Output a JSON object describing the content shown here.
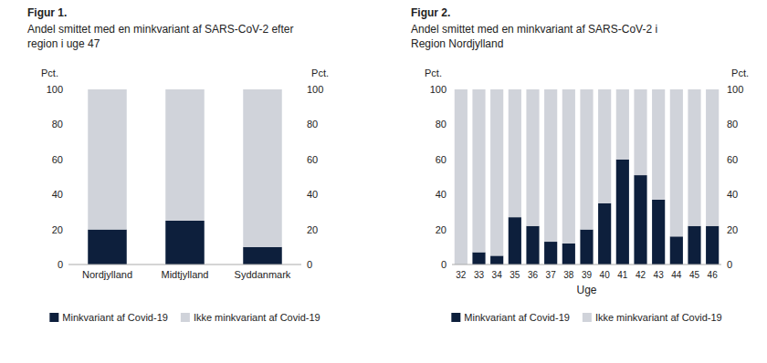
{
  "chart_data": [
    {
      "type": "bar",
      "stacked": true,
      "title": "Figur 1.",
      "subtitle": [
        "Andel smittet med en minkvariant af SARS-CoV-2 efter",
        "region i uge 47"
      ],
      "categories": [
        "Nordjylland",
        "Midtjylland",
        "Syddanmark"
      ],
      "series": [
        {
          "name": "Minkvariant af Covid-19",
          "color": "#0d1f3c",
          "values": [
            20,
            25,
            10
          ]
        },
        {
          "name": "Ikke minkvariant af Covid-19",
          "color": "#d0d3da",
          "values": [
            80,
            75,
            90
          ]
        }
      ],
      "ylabel": "Pct.",
      "y2label": "Pct.",
      "ylim": [
        0,
        100
      ],
      "yticks": [
        0,
        20,
        40,
        60,
        80,
        100
      ],
      "y2lim": [
        0,
        100
      ],
      "y2ticks": [
        0,
        20,
        40,
        60,
        80,
        100
      ],
      "grid": false,
      "legend": "bottom"
    },
    {
      "type": "bar",
      "stacked": true,
      "title": "Figur 2.",
      "subtitle": [
        "Andel smittet med en minkvariant af SARS-CoV-2  i",
        "Region Nordjylland"
      ],
      "categories": [
        "32",
        "33",
        "34",
        "35",
        "36",
        "37",
        "38",
        "39",
        "40",
        "41",
        "42",
        "43",
        "44",
        "45",
        "46"
      ],
      "series": [
        {
          "name": "Minkvariant af Covid-19",
          "color": "#0d1f3c",
          "values": [
            0,
            7,
            5,
            27,
            22,
            13,
            12,
            20,
            35,
            60,
            51,
            37,
            16,
            22,
            22
          ]
        },
        {
          "name": "Ikke minkvariant af Covid-19",
          "color": "#d0d3da",
          "values": [
            100,
            93,
            95,
            73,
            78,
            87,
            88,
            80,
            65,
            40,
            49,
            63,
            84,
            78,
            78
          ]
        }
      ],
      "xlabel": "Uge",
      "ylabel": "Pct.",
      "y2label": "Pct.",
      "ylim": [
        0,
        100
      ],
      "yticks": [
        0,
        20,
        40,
        60,
        80,
        100
      ],
      "y2lim": [
        0,
        100
      ],
      "y2ticks": [
        0,
        20,
        40,
        60,
        80,
        100
      ],
      "grid": false,
      "legend": "bottom"
    }
  ]
}
